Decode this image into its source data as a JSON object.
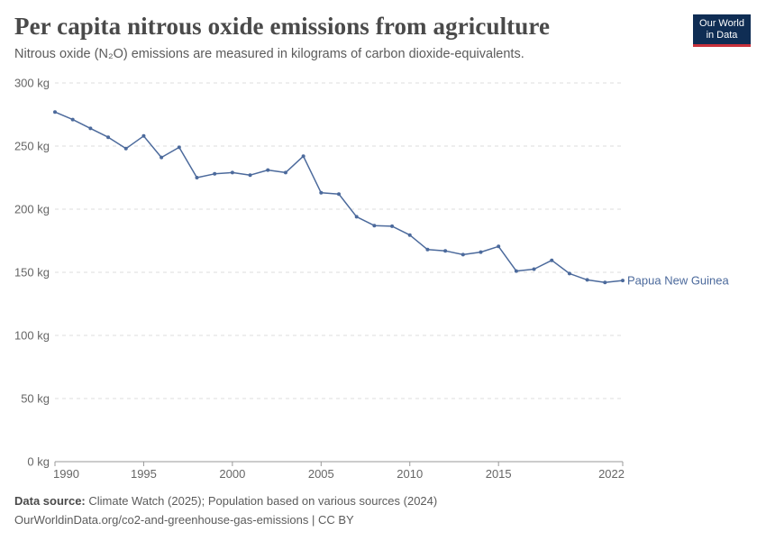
{
  "header": {
    "title": "Per capita nitrous oxide emissions from agriculture",
    "subtitle": "Nitrous oxide (N₂O) emissions are measured in kilograms of carbon dioxide-equivalents."
  },
  "logo": {
    "line1": "Our World",
    "line2": "in Data"
  },
  "footer": {
    "source_label": "Data source:",
    "source_text": "Climate Watch (2025); Population based on various sources (2024)",
    "url_text": "OurWorldinData.org/co2-and-greenhouse-gas-emissions | CC BY"
  },
  "colors": {
    "series": "#4c6a9c",
    "grid": "#dddddd",
    "axis": "#666666",
    "logo_bg": "#0f2d54",
    "logo_accent": "#c8313b"
  },
  "chart_data": {
    "type": "line",
    "title": "Per capita nitrous oxide emissions from agriculture",
    "xlim": [
      1990,
      2022
    ],
    "ylim": [
      0,
      300
    ],
    "xticks": [
      1990,
      1995,
      2000,
      2005,
      2010,
      2015,
      2022
    ],
    "xtick_labels": [
      "1990",
      "1995",
      "2000",
      "2005",
      "2010",
      "2015",
      "2022"
    ],
    "yticks": [
      0,
      50,
      100,
      150,
      200,
      250,
      300
    ],
    "ytick_labels": [
      "0 kg",
      "50 kg",
      "100 kg",
      "150 kg",
      "200 kg",
      "250 kg",
      "300 kg"
    ],
    "grid": true,
    "legend": "end-of-line label",
    "series": [
      {
        "name": "Papua New Guinea",
        "x": [
          1990,
          1991,
          1992,
          1993,
          1994,
          1995,
          1996,
          1997,
          1998,
          1999,
          2000,
          2001,
          2002,
          2003,
          2004,
          2005,
          2006,
          2007,
          2008,
          2009,
          2010,
          2011,
          2012,
          2013,
          2014,
          2015,
          2016,
          2017,
          2018,
          2019,
          2020,
          2021,
          2022
        ],
        "y": [
          277,
          271,
          264,
          257,
          248,
          258,
          241,
          249,
          225,
          228,
          229,
          227,
          231,
          229,
          242,
          213,
          212,
          194,
          187,
          186.5,
          179.5,
          168,
          167,
          164,
          166,
          170.5,
          151,
          152.5,
          159.5,
          149,
          144,
          142,
          143.5
        ]
      }
    ]
  }
}
